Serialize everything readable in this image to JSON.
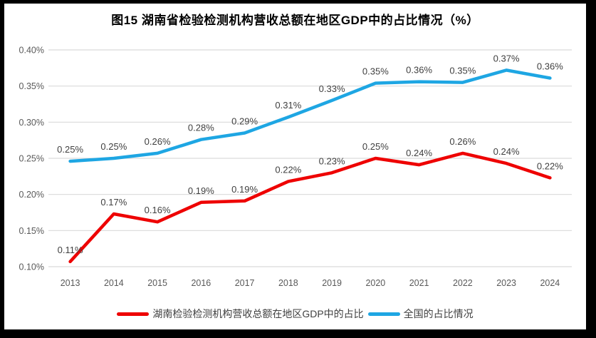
{
  "title": "图15 湖南省检验检测机构营收总额在地区GDP中的占比情况（%）",
  "chart_data": {
    "type": "line",
    "categories": [
      "2013",
      "2014",
      "2015",
      "2016",
      "2017",
      "2018",
      "2019",
      "2020",
      "2021",
      "2022",
      "2023",
      "2024"
    ],
    "series": [
      {
        "name": "湖南检验检测机构营收总额在地区GDP中的占比",
        "color": "#ee0000",
        "values": [
          0.107,
          0.173,
          0.162,
          0.189,
          0.191,
          0.218,
          0.23,
          0.25,
          0.241,
          0.257,
          0.243,
          0.223
        ],
        "point_labels": [
          "0.11%",
          "0.17%",
          "0.16%",
          "0.19%",
          "0.19%",
          "0.22%",
          "0.23%",
          "0.25%",
          "0.24%",
          "0.26%",
          "0.24%",
          "0.22%"
        ]
      },
      {
        "name": "全国的占比情况",
        "color": "#1ea6e3",
        "values": [
          0.246,
          0.25,
          0.257,
          0.276,
          0.285,
          0.307,
          0.33,
          0.354,
          0.356,
          0.355,
          0.372,
          0.361
        ],
        "point_labels": [
          "0.25%",
          "0.25%",
          "0.26%",
          "0.28%",
          "0.29%",
          "0.31%",
          "0.33%",
          "0.35%",
          "0.36%",
          "0.35%",
          "0.37%",
          "0.36%"
        ]
      }
    ],
    "y_axis": {
      "min": 0.1,
      "max": 0.4,
      "step": 0.05,
      "tick_labels": [
        "0.10%",
        "0.15%",
        "0.20%",
        "0.25%",
        "0.30%",
        "0.35%",
        "0.40%"
      ]
    },
    "xlabel": "",
    "ylabel": "",
    "grid": true,
    "legend_position": "bottom"
  },
  "style_colors": {
    "frame_border": "#000000",
    "background": "#ffffff",
    "gridline": "#d9d9d9",
    "axis_text": "#595959",
    "data_label_text": "#404040",
    "title_text": "#000000"
  }
}
